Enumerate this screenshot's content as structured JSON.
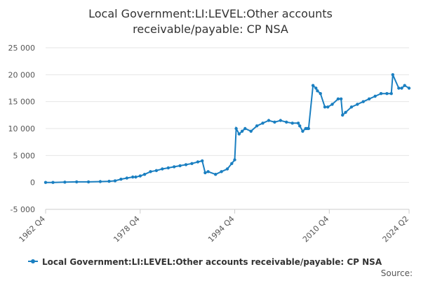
{
  "chart_data": {
    "type": "line",
    "title_lines": [
      "Local Government:LI:LEVEL:Other accounts",
      "receivable/payable: CP NSA"
    ],
    "xlabel": "",
    "ylabel": "",
    "ylim": [
      -5000,
      25000
    ],
    "yticks": [
      25000,
      20000,
      15000,
      10000,
      5000,
      0,
      -5000
    ],
    "ytick_labels": [
      "25 000",
      "20 000",
      "15 000",
      "10 000",
      "5 000",
      "0",
      "-5 000"
    ],
    "xlim": [
      "1962 Q4",
      "2024 Q2"
    ],
    "xticks": [
      "1962 Q4",
      "1978 Q4",
      "1994 Q4",
      "2010 Q4",
      "2024 Q2"
    ],
    "grid": true,
    "legend_position": "bottom-center",
    "series": [
      {
        "name": "Local Government:LI:LEVEL:Other accounts receivable/payable: CP NSA",
        "color": "#1a7fc1",
        "x": [
          "1962 Q4",
          "1964 Q1",
          "1966 Q1",
          "1968 Q1",
          "1970 Q1",
          "1972 Q1",
          "1973 Q3",
          "1974 Q3",
          "1975 Q3",
          "1976 Q3",
          "1977 Q3",
          "1978 Q1",
          "1978 Q4",
          "1979 Q3",
          "1980 Q3",
          "1981 Q3",
          "1982 Q3",
          "1983 Q3",
          "1984 Q3",
          "1985 Q3",
          "1986 Q3",
          "1987 Q3",
          "1988 Q3",
          "1989 Q2",
          "1989 Q4",
          "1990 Q2",
          "1991 Q3",
          "1992 Q3",
          "1993 Q3",
          "1994 Q2",
          "1994 Q4",
          "1995 Q1",
          "1995 Q3",
          "1996 Q1",
          "1996 Q3",
          "1997 Q3",
          "1998 Q3",
          "1999 Q3",
          "2000 Q3",
          "2001 Q3",
          "2002 Q3",
          "2003 Q3",
          "2004 Q3",
          "2005 Q3",
          "2005 Q4",
          "2006 Q2",
          "2006 Q4",
          "2007 Q1",
          "2007 Q2",
          "2008 Q1",
          "2008 Q3",
          "2008 Q4",
          "2009 Q2",
          "2010 Q1",
          "2010 Q3",
          "2011 Q2",
          "2012 Q2",
          "2012 Q4",
          "2013 Q1",
          "2013 Q3",
          "2014 Q3",
          "2015 Q3",
          "2016 Q3",
          "2017 Q3",
          "2018 Q3",
          "2019 Q3",
          "2020 Q3",
          "2021 Q2",
          "2021 Q3",
          "2022 Q3",
          "2023 Q1",
          "2023 Q3",
          "2024 Q2"
        ],
        "values": [
          0,
          0,
          50,
          100,
          100,
          150,
          200,
          300,
          600,
          800,
          1000,
          1000,
          1200,
          1500,
          2000,
          2200,
          2500,
          2700,
          2900,
          3100,
          3300,
          3500,
          3800,
          4000,
          1800,
          2000,
          1500,
          2000,
          2500,
          3500,
          4200,
          10000,
          9000,
          9500,
          10000,
          9500,
          10500,
          11000,
          11500,
          11200,
          11500,
          11200,
          11000,
          11000,
          10500,
          9500,
          10000,
          10000,
          10000,
          18000,
          17500,
          17000,
          16500,
          14000,
          14000,
          14500,
          15500,
          15500,
          12500,
          13000,
          14000,
          14500,
          15000,
          15500,
          16000,
          16500,
          16500,
          16500,
          20000,
          17500,
          17500,
          18000,
          17500
        ]
      }
    ],
    "source_label": "Source:"
  }
}
